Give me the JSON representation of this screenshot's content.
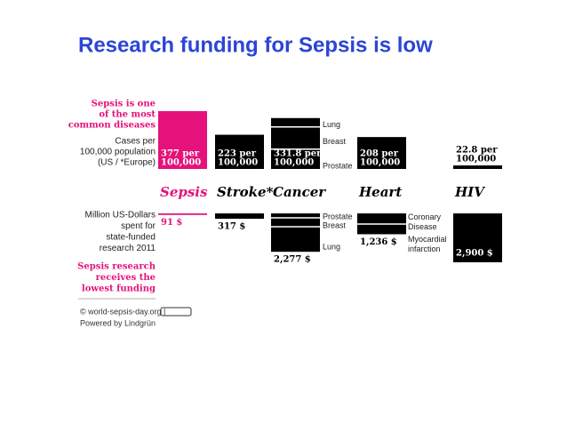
{
  "title": "Research funding for Sepsis is low",
  "left_labels": {
    "cases_highlight": [
      "Sepsis is one",
      "of the most",
      "common diseases"
    ],
    "cases": [
      "Cases per",
      "100,000 population",
      "(US / *Europe)"
    ],
    "funding": [
      "Million US-Dollars",
      "spent for",
      "state-funded",
      "research 2011"
    ],
    "funding_highlight": [
      "Sepsis research",
      "receives the",
      "lowest funding"
    ]
  },
  "diseases": [
    {
      "name": "Sepsis",
      "cases": 377,
      "cases_label": [
        "377 per",
        "100,000"
      ],
      "funding": 91,
      "funding_label": "91 $"
    },
    {
      "name": "Stroke*",
      "cases": 223,
      "cases_label": [
        "223 per",
        "100,000"
      ],
      "funding": 317,
      "funding_label": "317 $"
    },
    {
      "name": "Cancer",
      "cases": 331.8,
      "cases_label": [
        "331.8 per",
        "100,000"
      ],
      "funding": 2277,
      "funding_label": "2,277 $",
      "cases_parts": [
        "Lung",
        "Breast",
        "Prostate"
      ],
      "funding_parts": [
        "Prostate",
        "Breast",
        "Lung"
      ]
    },
    {
      "name": "Heart",
      "cases": 208,
      "cases_label": [
        "208 per",
        "100,000"
      ],
      "funding": 1236,
      "funding_label": "1,236 $",
      "funding_parts": [
        "Coronary Disease",
        "Myocardial infarction"
      ]
    },
    {
      "name": "HIV",
      "cases": 22.8,
      "cases_label": [
        "22.8 per",
        "100,000"
      ],
      "funding": 2900,
      "funding_label": "2,900 $"
    }
  ],
  "footer": [
    "© world-sepsis-day.org |",
    "Powered by Lindgrün"
  ]
}
